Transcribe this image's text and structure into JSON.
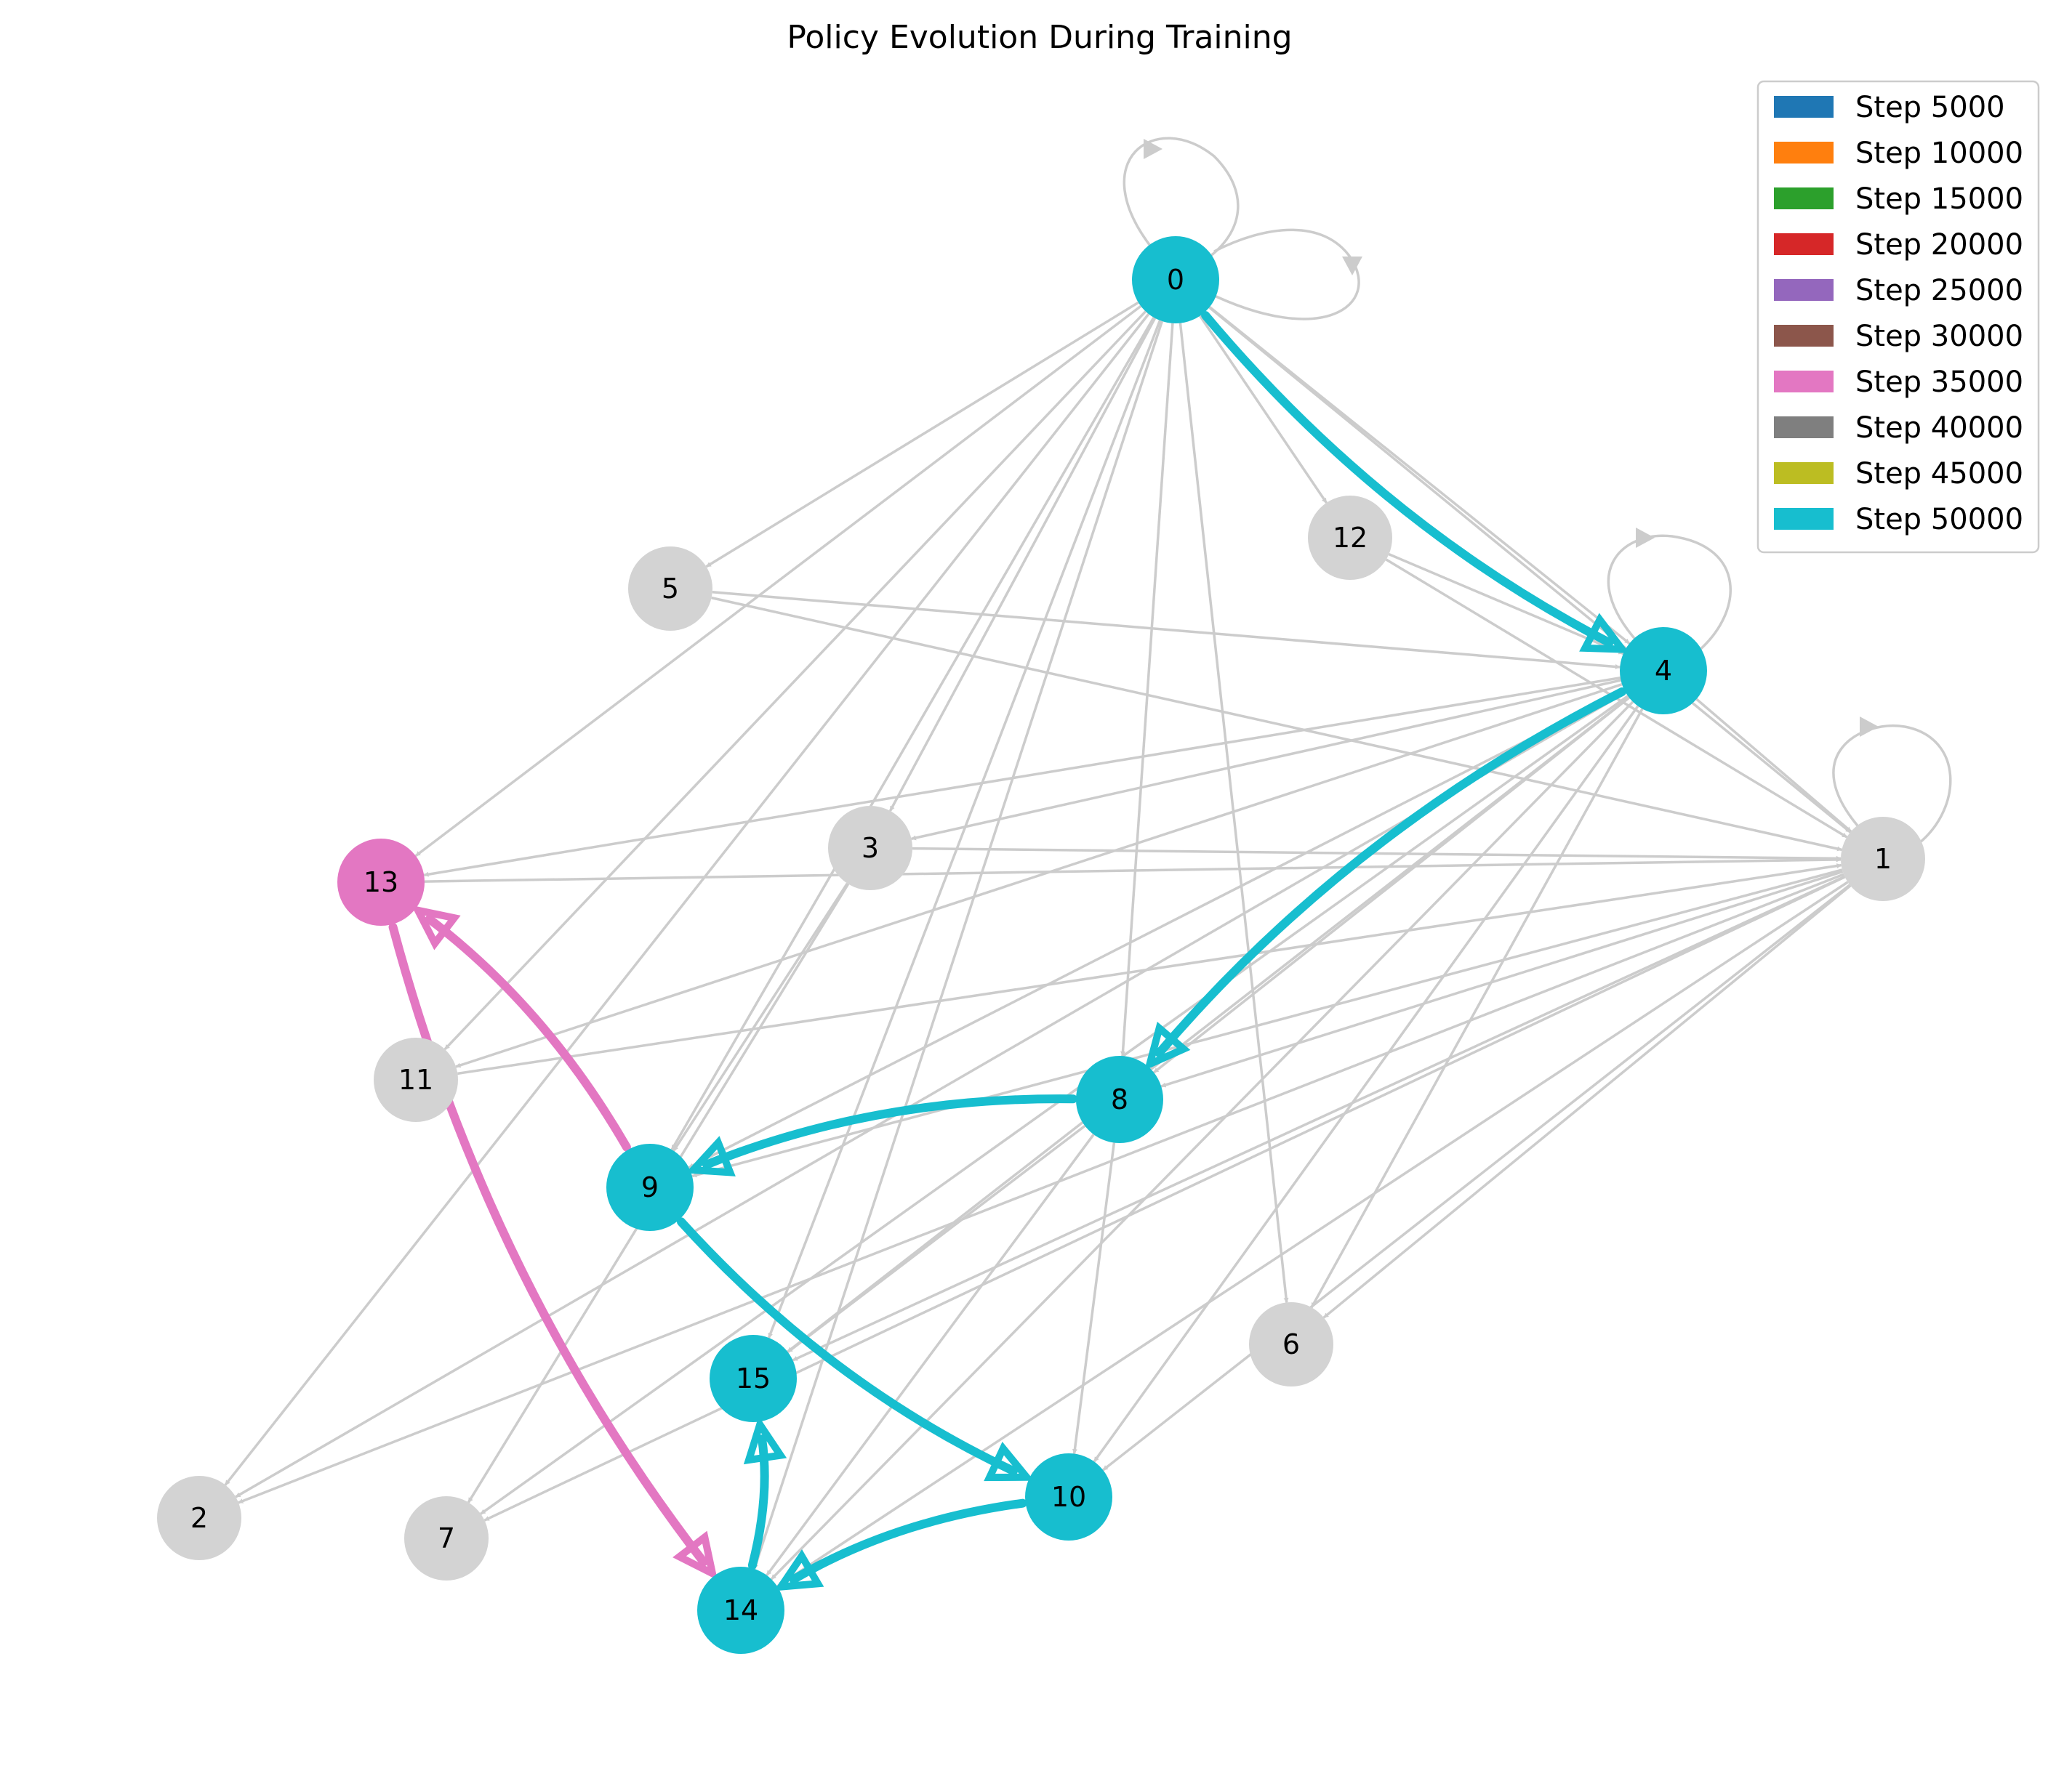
{
  "title": "Policy Evolution During Training",
  "colors": {
    "inactive_edge": "#cccccc",
    "inactive_node": "#d3d3d3"
  },
  "legend": [
    {
      "label": "Step 5000",
      "color": "#1f77b4"
    },
    {
      "label": "Step 10000",
      "color": "#ff7f0e"
    },
    {
      "label": "Step 15000",
      "color": "#2ca02c"
    },
    {
      "label": "Step 20000",
      "color": "#d62728"
    },
    {
      "label": "Step 25000",
      "color": "#9467bd"
    },
    {
      "label": "Step 30000",
      "color": "#8c564b"
    },
    {
      "label": "Step 35000",
      "color": "#e377c2"
    },
    {
      "label": "Step 40000",
      "color": "#7f7f7f"
    },
    {
      "label": "Step 45000",
      "color": "#bcbd22"
    },
    {
      "label": "Step 50000",
      "color": "#17becf"
    }
  ],
  "nodes": [
    {
      "id": "0",
      "step": "Step 50000"
    },
    {
      "id": "1",
      "step": null
    },
    {
      "id": "2",
      "step": null
    },
    {
      "id": "3",
      "step": null
    },
    {
      "id": "4",
      "step": "Step 50000"
    },
    {
      "id": "5",
      "step": null
    },
    {
      "id": "6",
      "step": null
    },
    {
      "id": "7",
      "step": null
    },
    {
      "id": "8",
      "step": "Step 50000"
    },
    {
      "id": "9",
      "step": "Step 50000"
    },
    {
      "id": "10",
      "step": "Step 50000"
    },
    {
      "id": "11",
      "step": null
    },
    {
      "id": "12",
      "step": null
    },
    {
      "id": "13",
      "step": "Step 35000"
    },
    {
      "id": "14",
      "step": "Step 50000"
    },
    {
      "id": "15",
      "step": "Step 50000"
    }
  ],
  "edges": [
    [
      "0",
      "5"
    ],
    [
      "0",
      "13"
    ],
    [
      "0",
      "11"
    ],
    [
      "0",
      "3"
    ],
    [
      "0",
      "2"
    ],
    [
      "0",
      "9"
    ],
    [
      "0",
      "15"
    ],
    [
      "0",
      "14"
    ],
    [
      "0",
      "8"
    ],
    [
      "0",
      "6"
    ],
    [
      "0",
      "12"
    ],
    [
      "0",
      "1"
    ],
    [
      "0",
      "4"
    ],
    [
      "5",
      "4"
    ],
    [
      "5",
      "1"
    ],
    [
      "12",
      "4"
    ],
    [
      "12",
      "1"
    ],
    [
      "4",
      "1"
    ],
    [
      "4",
      "13"
    ],
    [
      "4",
      "3"
    ],
    [
      "4",
      "11"
    ],
    [
      "4",
      "9"
    ],
    [
      "4",
      "15"
    ],
    [
      "4",
      "14"
    ],
    [
      "4",
      "10"
    ],
    [
      "4",
      "6"
    ],
    [
      "4",
      "8"
    ],
    [
      "4",
      "2"
    ],
    [
      "4",
      "7"
    ],
    [
      "13",
      "1"
    ],
    [
      "3",
      "1"
    ],
    [
      "11",
      "1"
    ],
    [
      "1",
      "8"
    ],
    [
      "1",
      "9"
    ],
    [
      "1",
      "15"
    ],
    [
      "1",
      "14"
    ],
    [
      "1",
      "10"
    ],
    [
      "1",
      "6"
    ],
    [
      "1",
      "2"
    ],
    [
      "1",
      "7"
    ],
    [
      "8",
      "15"
    ],
    [
      "8",
      "10"
    ],
    [
      "8",
      "14"
    ],
    [
      "3",
      "9"
    ],
    [
      "3",
      "7"
    ]
  ],
  "self_loops": [
    "0",
    "4",
    "1"
  ],
  "policy_edges": [
    {
      "from": "0",
      "to": "4",
      "step": "Step 50000"
    },
    {
      "from": "4",
      "to": "8",
      "step": "Step 50000"
    },
    {
      "from": "8",
      "to": "9",
      "step": "Step 50000"
    },
    {
      "from": "9",
      "to": "10",
      "step": "Step 50000"
    },
    {
      "from": "10",
      "to": "14",
      "step": "Step 50000"
    },
    {
      "from": "14",
      "to": "15",
      "step": "Step 50000"
    },
    {
      "from": "9",
      "to": "13",
      "step": "Step 35000"
    },
    {
      "from": "13",
      "to": "14",
      "step": "Step 35000"
    }
  ]
}
